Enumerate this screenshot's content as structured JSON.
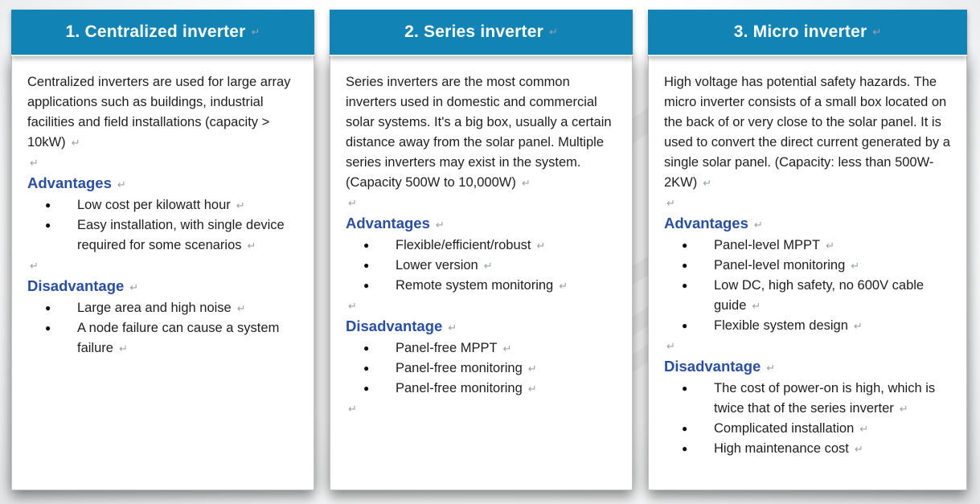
{
  "marks": {
    "line_break": "↵",
    "bullet": "●"
  },
  "colors": {
    "header_background": "#1183b4",
    "header_text": "#ffffff",
    "section_heading_text": "#2b4fa0",
    "body_text": "#1e1e1e",
    "formatting_mark": "#98a2a6",
    "card_background": "#ffffff"
  },
  "cards": [
    {
      "title": "1. Centralized inverter",
      "description": "Centralized inverters are used for large array applications such as buildings, industrial facilities and field installations (capacity > 10kW)",
      "advantages": {
        "label": "Advantages",
        "items": [
          "Low cost per kilowatt hour",
          "Easy installation, with single device required for some scenarios"
        ]
      },
      "disadvantages": {
        "label": "Disadvantage",
        "items": [
          "Large area and high noise",
          "A node failure can cause a system failure"
        ]
      }
    },
    {
      "title": "2. Series inverter",
      "description": "Series inverters are the most common inverters used in domestic and commercial solar systems. It's a big box, usually a certain distance away from the solar panel. Multiple series inverters may exist in the system. (Capacity 500W to 10,000W)",
      "advantages": {
        "label": "Advantages",
        "items": [
          "Flexible/efficient/robust",
          "Lower version",
          "Remote system monitoring"
        ]
      },
      "disadvantages": {
        "label": "Disadvantage",
        "items": [
          "Panel-free MPPT",
          "Panel-free monitoring",
          "Panel-free monitoring"
        ]
      }
    },
    {
      "title": "3. Micro inverter",
      "description": "High voltage has potential safety hazards. The micro inverter consists of a small box located on the back of or very close to the solar panel. It is used to convert the direct current generated by a single solar panel. (Capacity: less than 500W-2KW)",
      "advantages": {
        "label": "Advantages",
        "items": [
          "Panel-level MPPT",
          "Panel-level monitoring",
          "Low DC, high safety, no 600V cable guide",
          "Flexible system design"
        ]
      },
      "disadvantages": {
        "label": "Disadvantage",
        "items": [
          "The cost of power-on is high, which is twice that of the series inverter",
          "Complicated installation",
          "High maintenance cost"
        ]
      }
    }
  ]
}
